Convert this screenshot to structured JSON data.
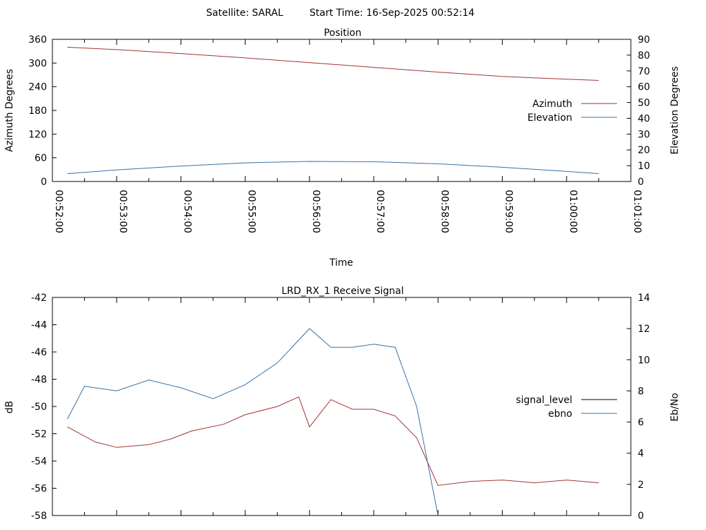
{
  "header": {
    "satellite": "Satellite: SARAL",
    "start_time": "Start Time: 16-Sep-2025 00:52:14"
  },
  "colors": {
    "azimuth": "#a03030",
    "elevation": "#3070a8",
    "signal_level": "#a03030",
    "ebno": "#00b000",
    "ebno_blue": "#3070a8"
  },
  "chart_data": [
    {
      "type": "line",
      "title": "Position",
      "xlabel": "Time",
      "ylabel": "Azimuth Degrees",
      "y2label": "Elevation Degrees",
      "xlim": [
        "00:52:00",
        "01:01:00"
      ],
      "ylim": [
        0,
        360
      ],
      "y2lim": [
        0,
        90
      ],
      "yticks": [
        "0",
        "60",
        "120",
        "180",
        "240",
        "300",
        "360"
      ],
      "y2ticks": [
        "0",
        "10",
        "20",
        "30",
        "40",
        "50",
        "60",
        "70",
        "80",
        "90"
      ],
      "xticks": [
        "00:52:00",
        "00:53:00",
        "00:54:00",
        "00:55:00",
        "00:56:00",
        "00:57:00",
        "00:58:00",
        "00:59:00",
        "01:00:00",
        "01:01:00"
      ],
      "legend_position": "right",
      "series": [
        {
          "name": "Azimuth",
          "axis": "y",
          "x": [
            "00:52:14",
            "00:53:00",
            "00:54:00",
            "00:55:00",
            "00:56:00",
            "00:57:00",
            "00:58:00",
            "00:59:00",
            "01:00:00",
            "01:00:30"
          ],
          "values": [
            340,
            334,
            324,
            313,
            301,
            289,
            277,
            266,
            259,
            256
          ]
        },
        {
          "name": "Elevation",
          "axis": "y2",
          "x": [
            "00:52:14",
            "00:53:00",
            "00:54:00",
            "00:55:00",
            "00:56:00",
            "00:57:00",
            "00:58:00",
            "00:59:00",
            "01:00:00",
            "01:00:30"
          ],
          "values": [
            5.0,
            7.3,
            9.8,
            11.8,
            12.7,
            12.5,
            11.2,
            9.0,
            6.4,
            5.0
          ]
        }
      ]
    },
    {
      "type": "line",
      "title": "LRD_RX_1 Receive Signal",
      "ylabel": "dB",
      "y2label": "Eb/No",
      "xlim": [
        "00:52:00",
        "01:01:00"
      ],
      "ylim": [
        -58,
        -42
      ],
      "y2lim": [
        0,
        14
      ],
      "yticks": [
        "-42",
        "-44",
        "-46",
        "-48",
        "-50",
        "-52",
        "-54",
        "-56",
        "-58"
      ],
      "y2ticks": [
        "0",
        "2",
        "4",
        "6",
        "8",
        "10",
        "12",
        "14"
      ],
      "legend_position": "right",
      "series": [
        {
          "name": "signal_level",
          "axis": "y",
          "x": [
            "00:52:14",
            "00:52:40",
            "00:53:00",
            "00:53:30",
            "00:53:50",
            "00:54:10",
            "00:54:40",
            "00:55:00",
            "00:55:30",
            "00:55:50",
            "00:56:00",
            "00:56:20",
            "00:56:40",
            "00:57:00",
            "00:57:20",
            "00:57:40",
            "00:58:00",
            "00:58:30",
            "00:59:00",
            "00:59:30",
            "01:00:00",
            "01:00:30"
          ],
          "values": [
            -51.5,
            -52.6,
            -53.0,
            -52.8,
            -52.4,
            -51.8,
            -51.3,
            -50.6,
            -50.0,
            -49.3,
            -51.5,
            -49.5,
            -50.2,
            -50.2,
            -50.7,
            -52.3,
            -55.8,
            -55.5,
            -55.4,
            -55.6,
            -55.4,
            -55.6
          ]
        },
        {
          "name": "ebno",
          "axis": "y2",
          "x": [
            "00:52:14",
            "00:52:30",
            "00:53:00",
            "00:53:30",
            "00:54:00",
            "00:54:30",
            "00:55:00",
            "00:55:30",
            "00:56:00",
            "00:56:20",
            "00:56:40",
            "00:57:00",
            "00:57:20",
            "00:57:40",
            "00:58:00"
          ],
          "values": [
            6.2,
            8.3,
            8.0,
            8.7,
            8.2,
            7.5,
            8.4,
            9.8,
            12.0,
            10.8,
            10.8,
            11.0,
            10.8,
            7.0,
            0.0
          ]
        }
      ]
    }
  ]
}
